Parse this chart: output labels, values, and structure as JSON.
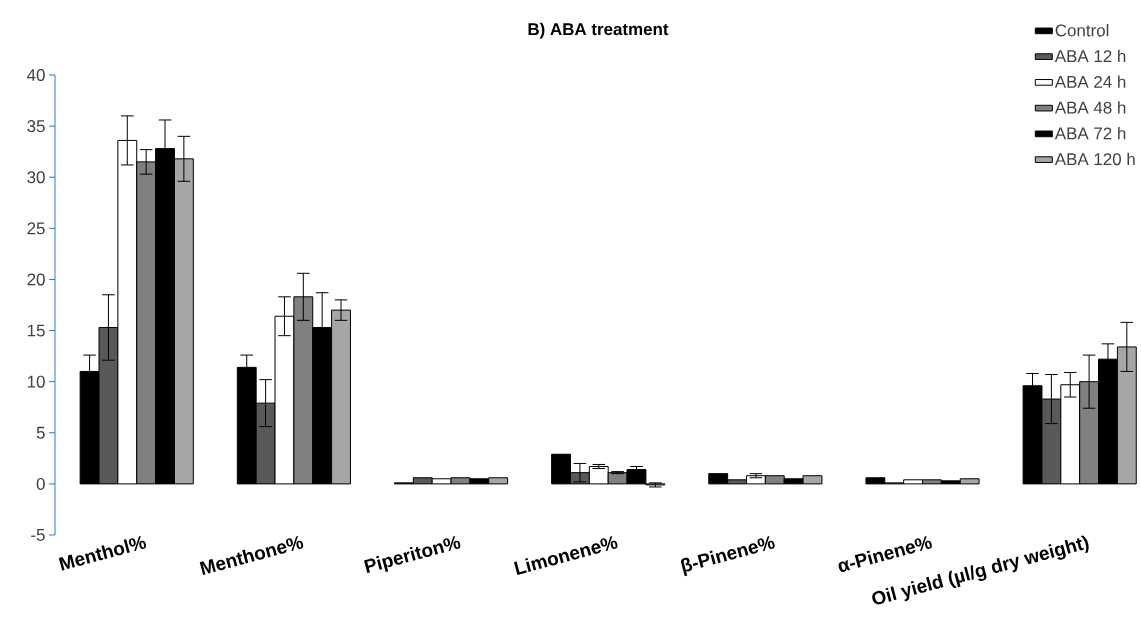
{
  "chart_data": {
    "type": "bar",
    "title": "B) ABA treatment",
    "categories": [
      "Menthol%",
      "Menthone%",
      "Piperiton%",
      "Limonene%",
      "β-Pinene%",
      "α-Pinene%",
      "Oil yield (µl/g dry weight)"
    ],
    "series": [
      {
        "name": "Control",
        "color": "#000000",
        "values": [
          11.0,
          11.4,
          0.1,
          2.9,
          1.0,
          0.6,
          9.6
        ],
        "errors": [
          1.6,
          1.2,
          null,
          null,
          null,
          null,
          1.2
        ]
      },
      {
        "name": "ABA 12 h",
        "color": "#595959",
        "values": [
          15.3,
          7.9,
          0.6,
          1.1,
          0.4,
          0.1,
          8.3
        ],
        "errors": [
          3.2,
          2.3,
          null,
          0.9,
          null,
          null,
          2.4
        ]
      },
      {
        "name": "ABA 24 h",
        "color": "#ffffff",
        "values": [
          33.6,
          16.4,
          0.5,
          1.7,
          0.8,
          0.4,
          9.7
        ],
        "errors": [
          2.4,
          1.9,
          null,
          0.2,
          0.2,
          null,
          1.2
        ]
      },
      {
        "name": "ABA 48 h",
        "color": "#808080",
        "values": [
          31.5,
          18.3,
          0.6,
          1.1,
          0.8,
          0.4,
          10.0
        ],
        "errors": [
          1.2,
          2.3,
          null,
          0.1,
          null,
          null,
          2.6
        ]
      },
      {
        "name": "ABA 72 h",
        "color": "#000000",
        "values": [
          32.8,
          15.3,
          0.5,
          1.4,
          0.5,
          0.3,
          12.2
        ],
        "errors": [
          2.8,
          3.4,
          null,
          0.3,
          null,
          null,
          1.5
        ]
      },
      {
        "name": "ABA 120 h",
        "color": "#a6a6a6",
        "values": [
          31.8,
          17.0,
          0.6,
          -0.1,
          0.8,
          0.5,
          13.4
        ],
        "errors": [
          2.2,
          1.0,
          null,
          0.2,
          null,
          null,
          2.4
        ]
      }
    ],
    "ylim": [
      -5,
      40
    ],
    "yticks": [
      -5,
      0,
      5,
      10,
      15,
      20,
      25,
      30,
      35,
      40
    ],
    "legend": "top right"
  }
}
